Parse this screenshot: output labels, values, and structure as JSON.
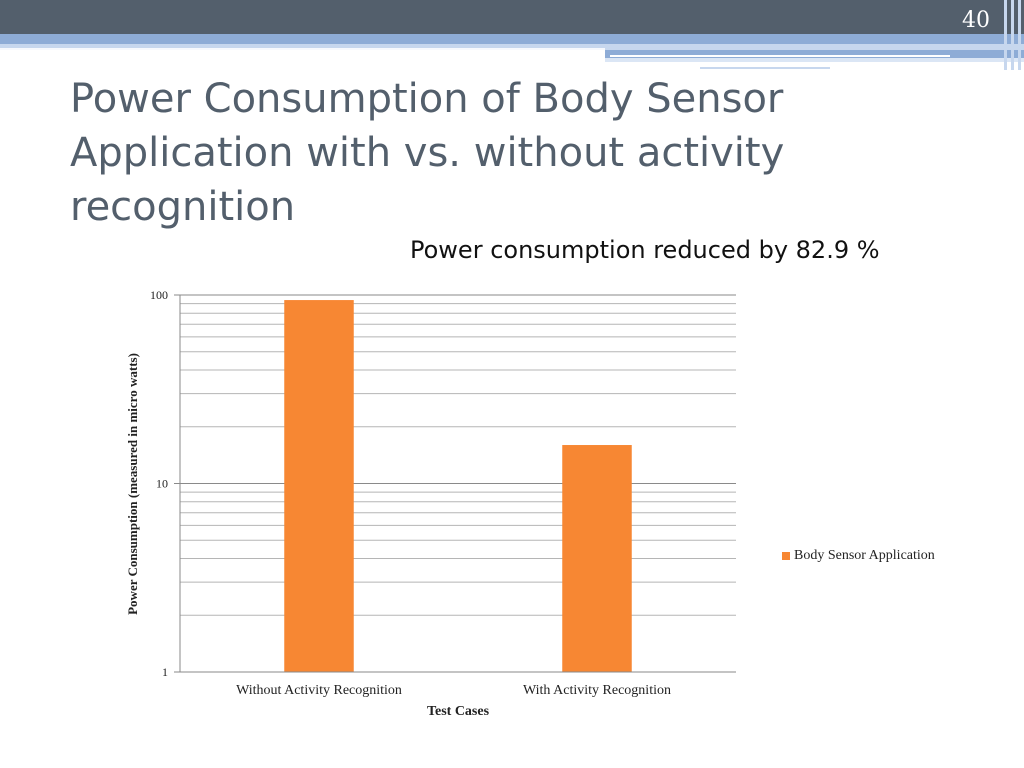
{
  "slide": {
    "number": "40",
    "title": "Power Consumption of Body Sensor Application with vs. without activity recognition",
    "subtitle": "Power consumption reduced by 82.9 %"
  },
  "chart_data": {
    "type": "bar",
    "title": "",
    "xlabel": "Test Cases",
    "ylabel": "Power Consumption (measured in micro watts)",
    "yscale": "log",
    "ylim": [
      1,
      100
    ],
    "yticks": [
      "1",
      "10",
      "100"
    ],
    "categories": [
      "Without Activity Recognition",
      "With Activity Recognition"
    ],
    "series": [
      {
        "name": "Body Sensor Application",
        "values": [
          94,
          16
        ],
        "color": "#f78733"
      }
    ],
    "grid": true,
    "legend": "right"
  }
}
